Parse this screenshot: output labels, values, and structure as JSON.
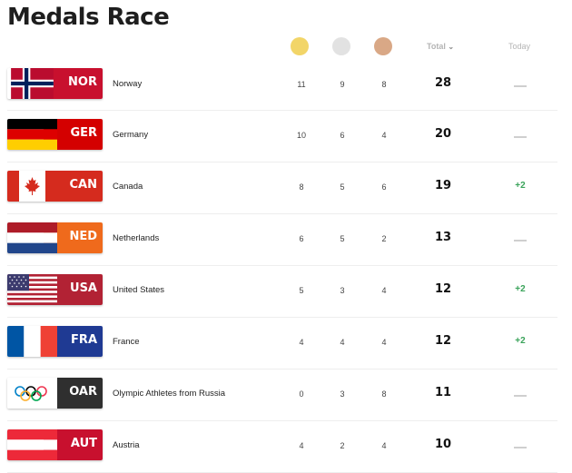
{
  "page": {
    "title": "Medals Race"
  },
  "header": {
    "total_label": "Total",
    "total_chevron": "⌄",
    "today_label": "Today",
    "medal_colors": {
      "gold": "#f2d568",
      "silver": "#e2e2e2",
      "bronze": "#d9a886"
    }
  },
  "countries": [
    {
      "code": "NOR",
      "name": "Norway",
      "gold": "11",
      "silver": "9",
      "bronze": "8",
      "total": "28",
      "today": ""
    },
    {
      "code": "GER",
      "name": "Germany",
      "gold": "10",
      "silver": "6",
      "bronze": "4",
      "total": "20",
      "today": ""
    },
    {
      "code": "CAN",
      "name": "Canada",
      "gold": "8",
      "silver": "5",
      "bronze": "6",
      "total": "19",
      "today": "+2"
    },
    {
      "code": "NED",
      "name": "Netherlands",
      "gold": "6",
      "silver": "5",
      "bronze": "2",
      "total": "13",
      "today": ""
    },
    {
      "code": "USA",
      "name": "United States",
      "gold": "5",
      "silver": "3",
      "bronze": "4",
      "total": "12",
      "today": "+2"
    },
    {
      "code": "FRA",
      "name": "France",
      "gold": "4",
      "silver": "4",
      "bronze": "4",
      "total": "12",
      "today": "+2"
    },
    {
      "code": "OAR",
      "name": "Olympic Athletes from Russia",
      "gold": "0",
      "silver": "3",
      "bronze": "8",
      "total": "11",
      "today": ""
    },
    {
      "code": "AUT",
      "name": "Austria",
      "gold": "4",
      "silver": "2",
      "bronze": "4",
      "total": "10",
      "today": ""
    }
  ],
  "badge_colors": {
    "NOR": "#c8102e",
    "GER": "#d40000",
    "CAN": "#d52b1e",
    "NED": "#ef6a1c",
    "USA": "#b22234",
    "FRA": "#1f3a93",
    "OAR": "#2f2f2f",
    "AUT": "#c8102e"
  }
}
